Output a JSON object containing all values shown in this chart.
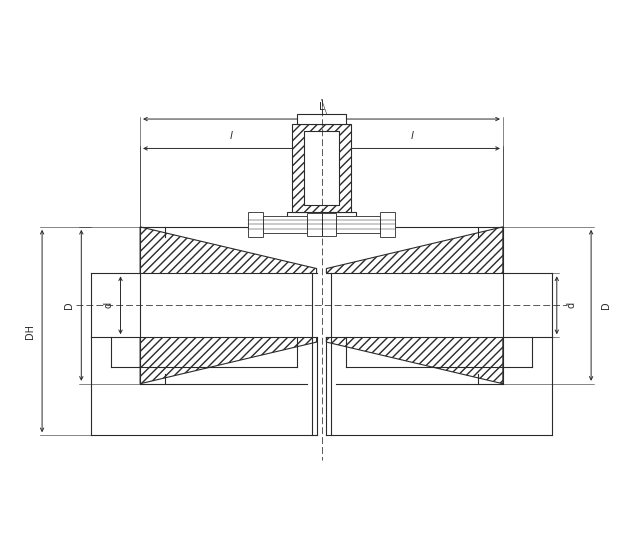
{
  "bg_color": "#ffffff",
  "line_color": "#2a2a2a",
  "dim_color": "#2a2a2a",
  "figsize": [
    6.43,
    5.42
  ],
  "dpi": 100,
  "xlim": [
    0,
    130
  ],
  "ylim": [
    0,
    110
  ]
}
